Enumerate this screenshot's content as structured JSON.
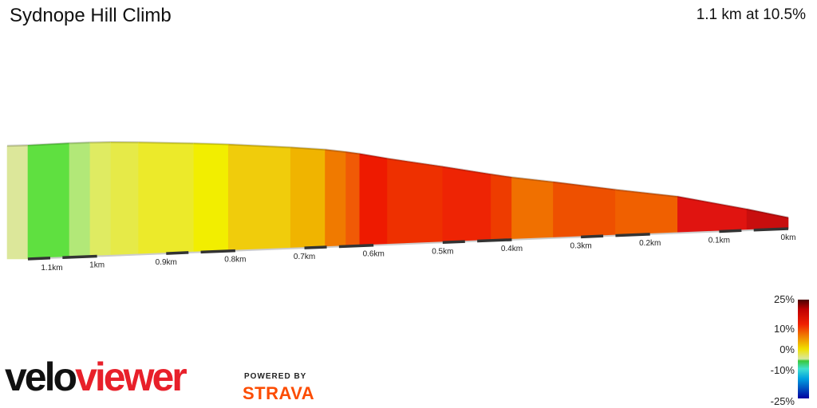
{
  "header": {
    "title": "Sydnope Hill Climb",
    "summary": "1.1 km at 10.5%"
  },
  "branding": {
    "velo": "velo",
    "viewer": "viewer",
    "powered_by": "POWERED BY",
    "strava": "STRAVA"
  },
  "legend": {
    "labels": [
      "25%",
      "10%",
      "0%",
      "-10%",
      "-25%"
    ]
  },
  "chart_data": {
    "type": "area",
    "title": "Sydnope Hill Climb",
    "subtitle": "1.1 km at 10.5%",
    "x_unit": "km",
    "x_direction": "descending",
    "x_ticks": [
      "1.1km",
      "1km",
      "0.9km",
      "0.8km",
      "0.7km",
      "0.6km",
      "0.5km",
      "0.4km",
      "0.3km",
      "0.2km",
      "0.1km",
      "0km"
    ],
    "x_tick_values": [
      1.1,
      1.0,
      0.9,
      0.8,
      0.7,
      0.6,
      0.5,
      0.4,
      0.3,
      0.2,
      0.1,
      0.0
    ],
    "segments": [
      {
        "from": 1.13,
        "to": 1.1,
        "gradient": 1,
        "color": "#dce79a"
      },
      {
        "from": 1.1,
        "to": 1.04,
        "gradient": -1,
        "color": "#5fe040"
      },
      {
        "from": 1.04,
        "to": 1.01,
        "gradient": 0.5,
        "color": "#b2e878"
      },
      {
        "from": 1.01,
        "to": 0.98,
        "gradient": 2,
        "color": "#dfeb62"
      },
      {
        "from": 0.98,
        "to": 0.94,
        "gradient": 4,
        "color": "#e6ea48"
      },
      {
        "from": 0.94,
        "to": 0.86,
        "gradient": 5,
        "color": "#ecea2a"
      },
      {
        "from": 0.86,
        "to": 0.81,
        "gradient": 6,
        "color": "#f2ee00"
      },
      {
        "from": 0.81,
        "to": 0.72,
        "gradient": 7.5,
        "color": "#f0cc0c"
      },
      {
        "from": 0.72,
        "to": 0.67,
        "gradient": 9,
        "color": "#f0b400"
      },
      {
        "from": 0.67,
        "to": 0.64,
        "gradient": 13,
        "color": "#f07a00"
      },
      {
        "from": 0.64,
        "to": 0.62,
        "gradient": 15,
        "color": "#f05a06"
      },
      {
        "from": 0.62,
        "to": 0.58,
        "gradient": 18,
        "color": "#ee1a00"
      },
      {
        "from": 0.58,
        "to": 0.5,
        "gradient": 16,
        "color": "#ee3000"
      },
      {
        "from": 0.5,
        "to": 0.43,
        "gradient": 17,
        "color": "#ee2404"
      },
      {
        "from": 0.43,
        "to": 0.4,
        "gradient": 16,
        "color": "#ee3c00"
      },
      {
        "from": 0.4,
        "to": 0.34,
        "gradient": 13,
        "color": "#f07000"
      },
      {
        "from": 0.34,
        "to": 0.25,
        "gradient": 14,
        "color": "#ee5000"
      },
      {
        "from": 0.25,
        "to": 0.16,
        "gradient": 13,
        "color": "#f06000"
      },
      {
        "from": 0.16,
        "to": 0.06,
        "gradient": 19,
        "color": "#e01410"
      },
      {
        "from": 0.06,
        "to": 0.0,
        "gradient": 21,
        "color": "#c80e0e"
      }
    ],
    "legend_ticks": [
      25,
      10,
      0,
      -10,
      -25
    ]
  }
}
